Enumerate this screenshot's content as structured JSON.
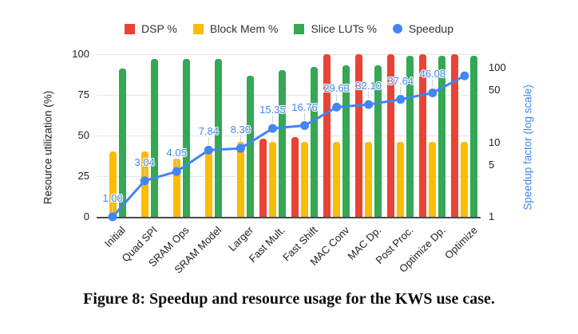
{
  "figure": {
    "caption": "Figure 8: Speedup and resource usage for the KWS use case."
  },
  "chart_data": {
    "type": "bar",
    "subtype": "grouped-bar with log-scale line overlay",
    "title": "",
    "categories": [
      "Initial",
      "Quad SPI",
      "SRAM Ops",
      "SRAM Model",
      "Larger",
      "Fast Mult.",
      "Fast Shift",
      "MAC Conv",
      "MAC Dp.",
      "Post Proc.",
      "Optimize Dp.",
      "Optimize"
    ],
    "series": [
      {
        "name": "DSP %",
        "type": "bar",
        "axis": "left",
        "color": "#EA4335",
        "values": [
          0,
          0,
          0,
          0,
          0,
          48,
          49,
          100,
          100,
          100,
          100,
          100
        ]
      },
      {
        "name": "Block Mem %",
        "type": "bar",
        "axis": "left",
        "color": "#FBBC04",
        "values": [
          40,
          40,
          36,
          40,
          46,
          46,
          46,
          46,
          46,
          46,
          46,
          46
        ]
      },
      {
        "name": "Slice LUTs %",
        "type": "bar",
        "axis": "left",
        "color": "#34A853",
        "values": [
          91,
          97,
          97,
          97,
          87,
          90,
          92,
          93,
          93,
          99,
          99,
          99
        ]
      },
      {
        "name": "Speedup",
        "type": "line",
        "axis": "right",
        "color": "#4285F4",
        "values": [
          1.0,
          3.04,
          4.05,
          7.84,
          8.3,
          15.35,
          16.76,
          29.63,
          32.1,
          37.64,
          46.08,
          78
        ],
        "point_labels": [
          "1.00",
          "3.04",
          "4.05",
          "7.84",
          "8.30",
          "15.35",
          "16.76",
          "29.63",
          "32.10",
          "37.64",
          "46.08",
          ""
        ]
      }
    ],
    "left_axis": {
      "title": "Resource utilization (%)",
      "min": 0,
      "max": 100,
      "ticks": [
        0,
        25,
        50,
        75,
        100
      ]
    },
    "right_axis": {
      "title": "Speedup factor (log scale)",
      "scale": "log",
      "min": 1,
      "max": 152,
      "ticks": [
        1,
        5,
        10,
        50,
        100
      ]
    },
    "legend": {
      "position": "top"
    },
    "grid": "horizontal",
    "style": {
      "gridline_color": "#e6e6e6",
      "baseline_color": "#4a4a4a",
      "tick_text_color": "#212121",
      "point_label_color": "#4285F4"
    }
  }
}
